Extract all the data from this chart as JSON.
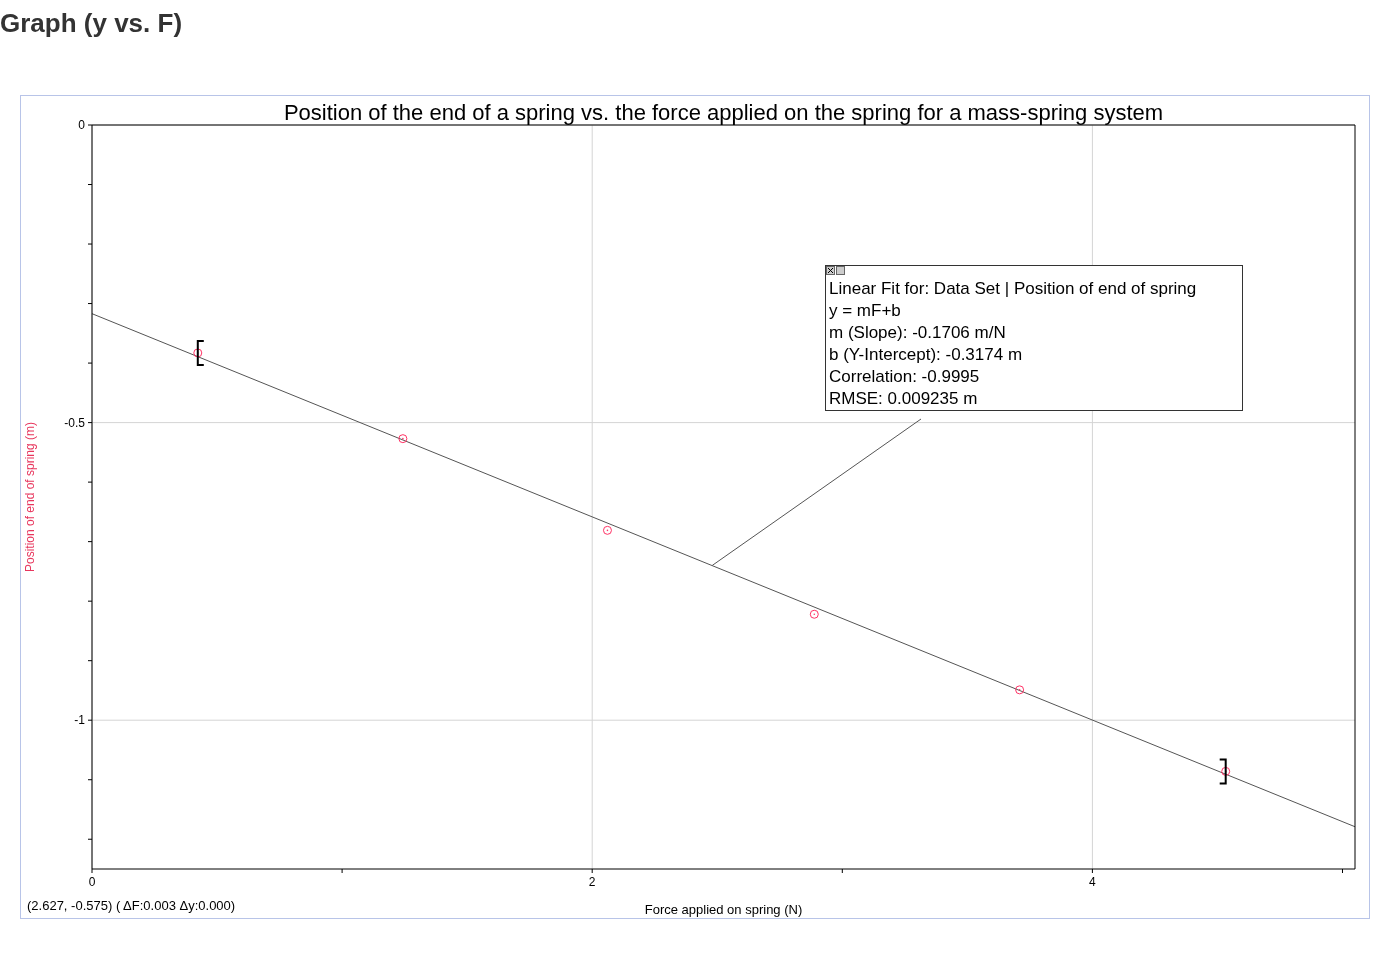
{
  "chart_data": {
    "type": "scatter",
    "title": "Graph (y vs. F)",
    "subtitle": "Position of the end of a spring vs. the force applied on the spring for a mass-spring system",
    "xlabel": "Force applied on spring (N)",
    "ylabel": "Position of end of spring (m)",
    "x": [
      0.423,
      1.243,
      2.061,
      2.888,
      3.709,
      4.533
    ],
    "series": [
      {
        "color": "#ff3366",
        "marker": "circle",
        "values": [
          -0.383,
          -0.527,
          -0.681,
          -0.822,
          -0.949,
          -1.086
        ]
      },
      {
        "type": "line",
        "color": "#555555",
        "marker": "none",
        "line_style": "solid",
        "x": [
          0,
          5.05
        ],
        "values": [
          -0.317,
          -1.179
        ]
      }
    ],
    "xlim": [
      0,
      5.05
    ],
    "xticks": [
      0,
      {
        "value": 1,
        "label": null
      },
      2,
      {
        "value": 3,
        "label": null
      },
      4,
      {
        "value": 5,
        "label": null
      }
    ],
    "ylim": [
      -1.25,
      0
    ],
    "yticks": [
      0,
      {
        "value": -0.1,
        "label": null
      },
      {
        "value": -0.2,
        "label": null
      },
      {
        "value": -0.3,
        "label": null
      },
      {
        "value": -0.4,
        "label": null
      },
      -0.5,
      {
        "value": -0.6,
        "label": null
      },
      {
        "value": -0.7,
        "label": null
      },
      {
        "value": -0.8,
        "label": null
      },
      {
        "value": -0.9,
        "label": null
      },
      -1,
      {
        "value": -1.1,
        "label": null
      },
      {
        "value": -1.2,
        "label": null
      }
    ],
    "grid": true,
    "annotations": [
      "Linear Fit for: Data Set | Position of end of spring",
      "y = mF+b",
      "m (Slope): -0.1706 m/N",
      "b (Y-Intercept): -0.3174 m",
      "Correlation: -0.9995",
      {
        "text": "RMSE: 0.009235 m",
        "x": 2.48,
        "y": -0.74
      },
      "(2.627, -0.575) ( ΔF:0.003 Δy:0.000)"
    ]
  }
}
